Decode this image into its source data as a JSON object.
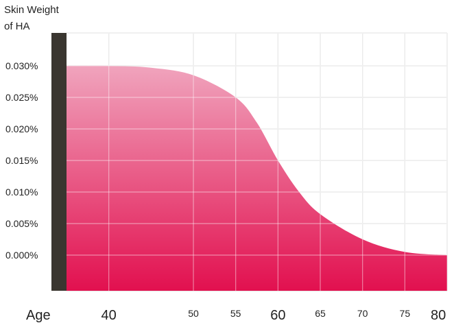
{
  "chart_data": {
    "type": "area",
    "title": "",
    "ylabel_lines": [
      "Skin Weight",
      "of HA"
    ],
    "xlabel": "Age",
    "x_ticks": [
      {
        "label": "40",
        "value": 40,
        "major": true
      },
      {
        "label": "50",
        "value": 50,
        "major": false
      },
      {
        "label": "55",
        "value": 55,
        "major": false
      },
      {
        "label": "60",
        "value": 60,
        "major": true
      },
      {
        "label": "65",
        "value": 65,
        "major": false
      },
      {
        "label": "70",
        "value": 70,
        "major": false
      },
      {
        "label": "75",
        "value": 75,
        "major": false
      },
      {
        "label": "80",
        "value": 80,
        "major": true
      }
    ],
    "y_ticks": [
      "0.030%",
      "0.025%",
      "0.020%",
      "0.015%",
      "0.010%",
      "0.005%",
      "0.000%"
    ],
    "y_tick_values": [
      0.03,
      0.025,
      0.02,
      0.015,
      0.01,
      0.005,
      0.0
    ],
    "series": [
      {
        "x": [
          35,
          40,
          45,
          50,
          55,
          57.5,
          60,
          62.5,
          65,
          70,
          75,
          80
        ],
        "y": [
          0.03,
          0.03,
          0.0297,
          0.0285,
          0.025,
          0.021,
          0.015,
          0.01,
          0.0065,
          0.0025,
          0.0005,
          0.0
        ]
      }
    ],
    "grid": true,
    "colors": {
      "fill_top": "#f0a4bd",
      "fill_bottom": "#e2104f",
      "axis_bar": "#3a3630",
      "grid": "#d8d8d8"
    }
  }
}
